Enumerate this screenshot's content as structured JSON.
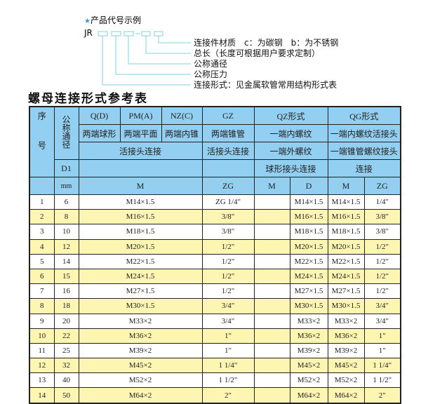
{
  "example": {
    "star_icon": "star-icon",
    "star_color": "#2a9fd6",
    "heading": "产品代号示例",
    "code_prefix": "JR",
    "labels": [
      "连接件材质　c：为碳钢　b：为不锈钢",
      "总长（长度可根据用户要求定制）",
      "公称通径",
      "公称压力",
      "连接形式：见金属软管常用结构形式表"
    ]
  },
  "table_title": "螺母连接形式参考表",
  "header": {
    "seq": "序号",
    "dn": "公称通径",
    "d1": "D1",
    "mm": "mm",
    "q": "Q(D)",
    "pm": "PM(A)",
    "nz": "NZ(C)",
    "gz": "GZ",
    "qz": "QZ形式",
    "qg": "QG形式",
    "q_desc": "两端球形",
    "pm_desc": "两端平面",
    "nz_desc": "两端内锥",
    "gz_desc": "两端锥管",
    "qz_desc1": "一端内螺纹",
    "qg_desc1": "一端内螺纹活接头",
    "live_conn": "活接头连接",
    "gz_conn": "活接头连接",
    "qz_desc2": "一端外螺纹",
    "qg_desc2": "一端锥管螺纹接头",
    "qz_desc3": "球形接头连接",
    "qg_desc3": "连接",
    "m": "M",
    "zg": "ZG",
    "qz_m": "M",
    "qz_d": "D",
    "qg_m": "M",
    "qg_zg": "ZG"
  },
  "colors": {
    "header_bg": "#92cff0",
    "alt_row_bg": "#fdf6b3"
  },
  "rows": [
    {
      "no": "1",
      "dn": "6",
      "m": "M14×1.5",
      "zg": "ZG 1/4\"",
      "qz_m": "",
      "qz_d": "M14×1.5",
      "qg_m": "M14×1.5",
      "qg_zg": "1/4\""
    },
    {
      "no": "2",
      "dn": "8",
      "m": "M16×1.5",
      "zg": "3/8\"",
      "qz_m": "",
      "qz_d": "M16×1.5",
      "qg_m": "M16×1.5",
      "qg_zg": "3/8\""
    },
    {
      "no": "3",
      "dn": "10",
      "m": "M18×1.5",
      "zg": "3/8\"",
      "qz_m": "",
      "qz_d": "M18×1.5",
      "qg_m": "M18×1.5",
      "qg_zg": "3/8\""
    },
    {
      "no": "4",
      "dn": "12",
      "m": "M20×1.5",
      "zg": "1/2\"",
      "qz_m": "",
      "qz_d": "M20×1.5",
      "qg_m": "M20×1.5",
      "qg_zg": "1/2\""
    },
    {
      "no": "5",
      "dn": "14",
      "m": "M22×1.5",
      "zg": "1/2\"",
      "qz_m": "",
      "qz_d": "M22×1.5",
      "qg_m": "M22×1.5",
      "qg_zg": "1/2\""
    },
    {
      "no": "6",
      "dn": "15",
      "m": "M24×1.5",
      "zg": "1/2\"",
      "qz_m": "",
      "qz_d": "M24×1.5",
      "qg_m": "M24×1.5",
      "qg_zg": "1/2\""
    },
    {
      "no": "7",
      "dn": "16",
      "m": "M27×1.5",
      "zg": "1/2\"",
      "qz_m": "",
      "qz_d": "M27×1.5",
      "qg_m": "M27×1.5",
      "qg_zg": "1/2\""
    },
    {
      "no": "8",
      "dn": "18",
      "m": "M30×1.5",
      "zg": "3/4\"",
      "qz_m": "",
      "qz_d": "M30×1.5",
      "qg_m": "M30×1.5",
      "qg_zg": "3/4\""
    },
    {
      "no": "9",
      "dn": "20",
      "m": "M33×2",
      "zg": "3/4\"",
      "qz_m": "",
      "qz_d": "M33×2",
      "qg_m": "M33×2",
      "qg_zg": "3/4\""
    },
    {
      "no": "10",
      "dn": "22",
      "m": "M36×2",
      "zg": "1\"",
      "qz_m": "",
      "qz_d": "M36×2",
      "qg_m": "M36×2",
      "qg_zg": "1\""
    },
    {
      "no": "11",
      "dn": "25",
      "m": "M39×2",
      "zg": "1\"",
      "qz_m": "",
      "qz_d": "M39×2",
      "qg_m": "M39×2",
      "qg_zg": "1\""
    },
    {
      "no": "12",
      "dn": "32",
      "m": "M45×2",
      "zg": "1 1/4\"",
      "qz_m": "",
      "qz_d": "M45×2",
      "qg_m": "M45×2",
      "qg_zg": "1 1/4\""
    },
    {
      "no": "13",
      "dn": "40",
      "m": "M52×2",
      "zg": "1 1/2\"",
      "qz_m": "",
      "qz_d": "M52×2",
      "qg_m": "M52×2",
      "qg_zg": "1 1/2\""
    },
    {
      "no": "14",
      "dn": "50",
      "m": "M64×2",
      "zg": "2\"",
      "qz_m": "",
      "qz_d": "M64×2",
      "qg_m": "M64×2",
      "qg_zg": "2\""
    }
  ]
}
